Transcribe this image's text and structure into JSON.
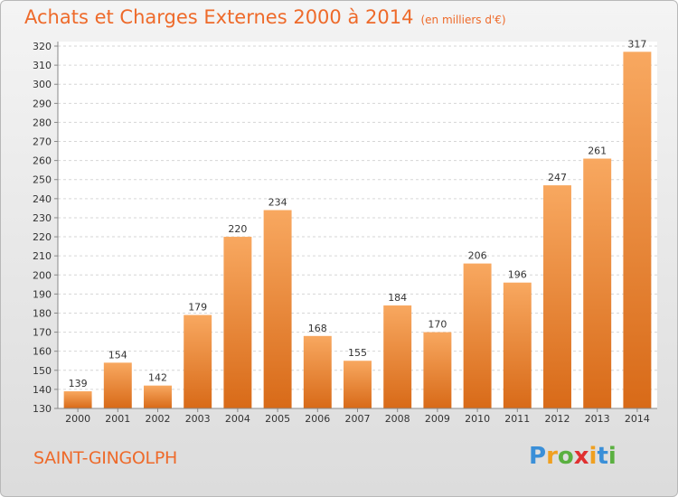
{
  "header": {
    "title": "Achats et Charges Externes 2000 à 2014",
    "unit": "(en milliers d'€)"
  },
  "footer": {
    "town": "SAINT-GINGOLPH",
    "logo": "Proxiti"
  },
  "colors": {
    "title": "#ee6a2a",
    "bar_top": "#f8a860",
    "bar_bottom": "#d86a18"
  },
  "chart_data": {
    "type": "bar",
    "categories": [
      "2000",
      "2001",
      "2002",
      "2003",
      "2004",
      "2005",
      "2006",
      "2007",
      "2008",
      "2009",
      "2010",
      "2011",
      "2012",
      "2013",
      "2014"
    ],
    "values": [
      139,
      154,
      142,
      179,
      220,
      234,
      168,
      155,
      184,
      170,
      206,
      196,
      247,
      261,
      317
    ],
    "ylim": [
      130,
      320
    ],
    "yticks": [
      130,
      140,
      150,
      160,
      170,
      180,
      190,
      200,
      210,
      220,
      230,
      240,
      250,
      260,
      270,
      280,
      290,
      300,
      310,
      320
    ],
    "grid": true,
    "data_labels": true
  }
}
